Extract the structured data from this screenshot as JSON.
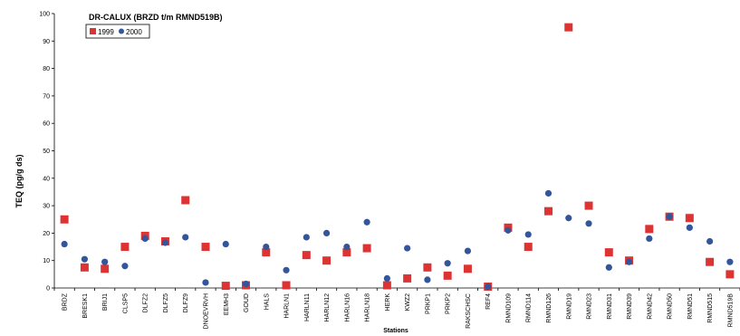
{
  "chart_data": {
    "type": "scatter",
    "title": "DR-CALUX (BRZD t/m RMND519B)",
    "xlabel": "Stations",
    "ylabel": "TEQ (pg/g ds)",
    "ylim": [
      0,
      100
    ],
    "yticks": [
      0,
      10,
      20,
      30,
      40,
      50,
      60,
      70,
      80,
      90,
      100
    ],
    "grid": false,
    "legend": "top-left",
    "categories": [
      "BRDZ",
      "BRESK1",
      "BRIJ1",
      "CLSP5",
      "DLFZ2",
      "DLFZ5",
      "DLFZ9",
      "DNOEVRVH",
      "EEMH3",
      "GOUD",
      "HALS",
      "HARLN1",
      "HARLN11",
      "HARLN12",
      "HARLN16",
      "HARLN18",
      "HERK",
      "KWZ2",
      "PRKP1",
      "PRKP2",
      "RAKSCHSC",
      "REF4",
      "RMND109",
      "RMND114",
      "RMND126",
      "RMND19",
      "RMND23",
      "RMND31",
      "RMND39",
      "RMND42",
      "RMND50",
      "RMND51",
      "RMND515",
      "RMND519B"
    ],
    "series": [
      {
        "name": "1999",
        "marker": "square",
        "color": "#dd3333",
        "values": [
          25,
          7.5,
          7,
          15,
          19,
          17,
          32,
          15,
          0.8,
          1,
          13,
          1,
          12,
          10,
          13,
          14.5,
          1,
          3.5,
          7.5,
          4.5,
          7,
          0.5,
          22,
          15,
          28,
          95,
          30,
          13,
          10,
          21.5,
          26,
          25.5,
          9.5,
          5
        ]
      },
      {
        "name": "2000",
        "marker": "circle",
        "color": "#33559a",
        "values": [
          16,
          10.5,
          9.5,
          8,
          18,
          16.5,
          18.5,
          2,
          16,
          1.5,
          15,
          6.5,
          18.5,
          20,
          15,
          24,
          3.5,
          14.5,
          3,
          9,
          13.5,
          0.5,
          21,
          19.5,
          34.5,
          25.5,
          23.5,
          7.5,
          9.5,
          18,
          26,
          22,
          17,
          9.5
        ]
      }
    ]
  }
}
